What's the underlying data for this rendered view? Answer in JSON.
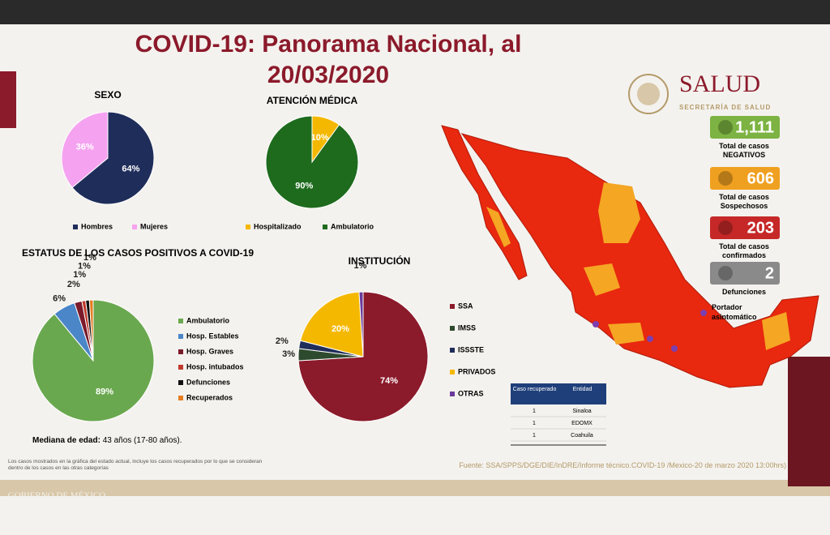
{
  "title": "COVID-19: Panorama Nacional, al 20/03/2020",
  "logo": {
    "name": "SALUD",
    "subtitle": "SECRETARÍA DE SALUD"
  },
  "chart_data": [
    {
      "type": "pie",
      "title": "SEXO",
      "categories": [
        "Hombres",
        "Mujeres"
      ],
      "values": [
        64,
        36
      ],
      "value_labels": [
        "64%",
        "36%"
      ],
      "colors": [
        "#1f2d5a",
        "#f5a3f0"
      ]
    },
    {
      "type": "pie",
      "title": "ATENCIÓN MÉDICA",
      "categories": [
        "Hospitalizado",
        "Ambulatorio"
      ],
      "values": [
        10,
        90
      ],
      "value_labels": [
        "10%",
        "90%"
      ],
      "colors": [
        "#f5b800",
        "#1e6b1e"
      ]
    },
    {
      "type": "pie",
      "title": "ESTATUS DE LOS CASOS POSITIVOS A COVID-19",
      "categories": [
        "Ambulatorio",
        "Hosp. Estables",
        "Hosp. Graves",
        "Hosp. intubados",
        "Defunciones",
        "Recuperados"
      ],
      "values": [
        89,
        6,
        2,
        1,
        1,
        1
      ],
      "value_labels": [
        "89%",
        "6%",
        "2%",
        "1%",
        "1%",
        "1%"
      ],
      "colors": [
        "#6aa84f",
        "#4a86c8",
        "#7a1a2b",
        "#c0392b",
        "#111111",
        "#e67e22"
      ]
    },
    {
      "type": "pie",
      "title": "INSTITUCIÓN",
      "categories": [
        "SSA",
        "IMSS",
        "ISSSTE",
        "PRIVADOS",
        "OTRAS"
      ],
      "values": [
        74,
        3,
        2,
        20,
        1
      ],
      "value_labels": [
        "74%",
        "3%",
        "2%",
        "20%",
        "1%"
      ],
      "colors": [
        "#8b1a2b",
        "#2e4a2e",
        "#1f2d5a",
        "#f5b800",
        "#6a3a9a"
      ]
    }
  ],
  "stats": [
    {
      "value": "1,111",
      "label": "Total de casos NEGATIVOS",
      "color": "#7cb342"
    },
    {
      "value": "606",
      "label": "Total de casos Sospechosos",
      "color": "#f0a020"
    },
    {
      "value": "203",
      "label": "Total de casos confirmados",
      "color": "#c62828"
    },
    {
      "value": "2",
      "label": "Defunciones",
      "color": "#8a8a8a"
    }
  ],
  "map_legend": "Portador asintomático",
  "table": {
    "header": [
      "Caso recuperado",
      "Entidad"
    ],
    "rows": [
      [
        "1",
        "Sinaloa"
      ],
      [
        "1",
        "EDOMX"
      ],
      [
        "1",
        "Coahuila"
      ]
    ]
  },
  "median": {
    "label": "Mediana de edad:",
    "value": "43 años (17-80 años)."
  },
  "footnote": "Los casos mostrados en la gráfica del estado actual, incluye los casos recuperados por lo que se consideran dentro de los casos en las otras categorías",
  "source": "Fuente: SSA/SPPS/DGE/DIE/InDRE/Informe técnico.COVID-19 /Mexico-20 de marzo 2020 13:00hrs)",
  "government": "GOBIERNO DE MÉXICO"
}
